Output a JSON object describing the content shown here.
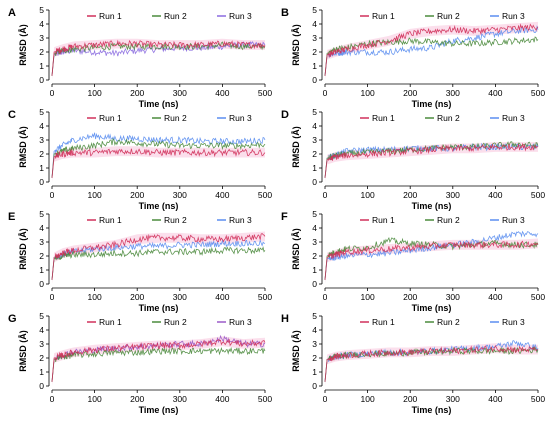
{
  "figure": {
    "panel_letters": [
      "A",
      "B",
      "C",
      "D",
      "E",
      "F",
      "G",
      "H"
    ],
    "xlabel": "Time (ns)",
    "ylabel": "RMSD (Å)",
    "x_ticks": [
      0,
      100,
      200,
      300,
      400,
      500
    ],
    "y_ticks": [
      0,
      1,
      2,
      3,
      4,
      5
    ]
  },
  "chart_data": [
    {
      "type": "line",
      "panel": "A",
      "xlabel": "Time (ns)",
      "ylabel": "RMSD (Å)",
      "xlim": [
        0,
        500
      ],
      "ylim": [
        0,
        5
      ],
      "series": [
        {
          "name": "Run 1",
          "color": "#d0305a",
          "x": [
            0,
            5,
            25,
            50,
            100,
            150,
            200,
            250,
            300,
            350,
            400,
            450,
            500
          ],
          "y": [
            0.3,
            2.0,
            2.2,
            2.4,
            2.5,
            2.6,
            2.6,
            2.5,
            2.5,
            2.5,
            2.6,
            2.5,
            2.5
          ]
        },
        {
          "name": "Run 2",
          "color": "#4a8a3c",
          "x": [
            0,
            5,
            25,
            50,
            100,
            150,
            200,
            250,
            300,
            350,
            400,
            450,
            500
          ],
          "y": [
            0.3,
            1.9,
            2.1,
            2.2,
            2.3,
            2.4,
            2.4,
            2.4,
            2.4,
            2.4,
            2.5,
            2.4,
            2.4
          ]
        },
        {
          "name": "Run 3",
          "color": "#8a6ae0",
          "x": [
            0,
            5,
            25,
            50,
            100,
            150,
            200,
            250,
            300,
            350,
            400,
            450,
            500
          ],
          "y": [
            0.3,
            1.8,
            2.0,
            2.1,
            2.0,
            1.9,
            2.1,
            2.2,
            2.3,
            2.3,
            2.4,
            2.5,
            2.5
          ]
        }
      ]
    },
    {
      "type": "line",
      "panel": "B",
      "xlabel": "Time (ns)",
      "ylabel": "RMSD (Å)",
      "xlim": [
        0,
        500
      ],
      "ylim": [
        0,
        5
      ],
      "series": [
        {
          "name": "Run 1",
          "color": "#d0305a",
          "x": [
            0,
            5,
            25,
            50,
            100,
            150,
            200,
            250,
            300,
            350,
            400,
            450,
            500
          ],
          "y": [
            0.3,
            1.8,
            2.0,
            2.2,
            2.5,
            2.8,
            3.3,
            3.5,
            3.6,
            3.5,
            3.6,
            3.7,
            3.8
          ]
        },
        {
          "name": "Run 2",
          "color": "#4a8a3c",
          "x": [
            0,
            5,
            25,
            50,
            100,
            150,
            200,
            250,
            300,
            350,
            400,
            450,
            500
          ],
          "y": [
            0.3,
            1.9,
            2.2,
            2.3,
            2.6,
            2.7,
            2.8,
            2.7,
            2.6,
            2.6,
            2.7,
            2.8,
            2.9
          ]
        },
        {
          "name": "Run 3",
          "color": "#5b8ef0",
          "x": [
            0,
            5,
            25,
            50,
            100,
            150,
            200,
            250,
            300,
            350,
            400,
            450,
            500
          ],
          "y": [
            0.3,
            1.8,
            1.9,
            2.0,
            2.0,
            2.0,
            2.2,
            2.3,
            2.8,
            3.0,
            3.3,
            3.5,
            3.6
          ]
        }
      ]
    },
    {
      "type": "line",
      "panel": "C",
      "xlabel": "Time (ns)",
      "ylabel": "RMSD (Å)",
      "xlim": [
        0,
        500
      ],
      "ylim": [
        0,
        5
      ],
      "series": [
        {
          "name": "Run 1",
          "color": "#d0305a",
          "x": [
            0,
            5,
            25,
            50,
            100,
            150,
            200,
            250,
            300,
            350,
            400,
            450,
            500
          ],
          "y": [
            0.3,
            1.8,
            2.0,
            2.1,
            2.1,
            2.2,
            2.2,
            2.1,
            2.1,
            2.1,
            2.1,
            2.1,
            2.1
          ]
        },
        {
          "name": "Run 2",
          "color": "#4a8a3c",
          "x": [
            0,
            5,
            25,
            50,
            100,
            150,
            200,
            250,
            300,
            350,
            400,
            450,
            500
          ],
          "y": [
            0.3,
            2.0,
            2.2,
            2.4,
            2.6,
            2.9,
            2.8,
            2.7,
            2.6,
            2.6,
            2.6,
            2.6,
            2.7
          ]
        },
        {
          "name": "Run 3",
          "color": "#5b8ef0",
          "x": [
            0,
            5,
            25,
            50,
            100,
            150,
            200,
            250,
            300,
            350,
            400,
            450,
            500
          ],
          "y": [
            0.3,
            2.2,
            2.6,
            3.0,
            3.3,
            3.1,
            3.1,
            3.0,
            3.0,
            2.9,
            2.9,
            2.9,
            3.0
          ]
        }
      ]
    },
    {
      "type": "line",
      "panel": "D",
      "xlabel": "Time (ns)",
      "ylabel": "RMSD (Å)",
      "xlim": [
        0,
        500
      ],
      "ylim": [
        0,
        5
      ],
      "series": [
        {
          "name": "Run 1",
          "color": "#d0305a",
          "x": [
            0,
            5,
            25,
            50,
            100,
            150,
            200,
            250,
            300,
            350,
            400,
            450,
            500
          ],
          "y": [
            0.3,
            1.6,
            1.8,
            1.9,
            2.0,
            2.1,
            2.2,
            2.3,
            2.4,
            2.4,
            2.5,
            2.5,
            2.5
          ]
        },
        {
          "name": "Run 2",
          "color": "#4a8a3c",
          "x": [
            0,
            5,
            25,
            50,
            100,
            150,
            200,
            250,
            300,
            350,
            400,
            450,
            500
          ],
          "y": [
            0.3,
            1.7,
            1.9,
            2.0,
            2.1,
            2.2,
            2.3,
            2.4,
            2.5,
            2.5,
            2.6,
            2.7,
            2.6
          ]
        },
        {
          "name": "Run 3",
          "color": "#5b8ef0",
          "x": [
            0,
            5,
            25,
            50,
            100,
            150,
            200,
            250,
            300,
            350,
            400,
            450,
            500
          ],
          "y": [
            0.3,
            1.7,
            1.9,
            2.2,
            2.3,
            2.3,
            2.4,
            2.4,
            2.4,
            2.5,
            2.5,
            2.5,
            2.5
          ]
        }
      ]
    },
    {
      "type": "line",
      "panel": "E",
      "xlabel": "Time (ns)",
      "ylabel": "RMSD (Å)",
      "xlim": [
        0,
        500
      ],
      "ylim": [
        0,
        5
      ],
      "series": [
        {
          "name": "Run 1",
          "color": "#d0305a",
          "x": [
            0,
            5,
            25,
            50,
            100,
            150,
            200,
            250,
            300,
            350,
            400,
            450,
            500
          ],
          "y": [
            0.3,
            1.9,
            2.2,
            2.4,
            2.6,
            2.8,
            3.2,
            3.3,
            3.3,
            3.2,
            3.2,
            3.3,
            3.4
          ]
        },
        {
          "name": "Run 2",
          "color": "#4a8a3c",
          "x": [
            0,
            5,
            25,
            50,
            100,
            150,
            200,
            250,
            300,
            350,
            400,
            450,
            500
          ],
          "y": [
            0.3,
            1.8,
            2.0,
            2.1,
            2.1,
            2.2,
            2.2,
            2.3,
            2.3,
            2.3,
            2.4,
            2.4,
            2.4
          ]
        },
        {
          "name": "Run 3",
          "color": "#5b8ef0",
          "x": [
            0,
            5,
            25,
            50,
            100,
            150,
            200,
            250,
            300,
            350,
            400,
            450,
            500
          ],
          "y": [
            0.3,
            1.9,
            2.1,
            2.3,
            2.5,
            2.6,
            2.7,
            2.7,
            2.8,
            2.8,
            2.9,
            2.9,
            2.9
          ]
        }
      ]
    },
    {
      "type": "line",
      "panel": "F",
      "xlabel": "Time (ns)",
      "ylabel": "RMSD (Å)",
      "xlim": [
        0,
        500
      ],
      "ylim": [
        0,
        5
      ],
      "series": [
        {
          "name": "Run 1",
          "color": "#d0305a",
          "x": [
            0,
            5,
            25,
            50,
            100,
            150,
            200,
            250,
            300,
            350,
            400,
            450,
            500
          ],
          "y": [
            0.3,
            1.9,
            2.1,
            2.3,
            2.4,
            2.5,
            2.6,
            2.7,
            2.8,
            2.8,
            2.8,
            2.8,
            2.9
          ]
        },
        {
          "name": "Run 2",
          "color": "#4a8a3c",
          "x": [
            0,
            5,
            25,
            50,
            100,
            150,
            200,
            250,
            300,
            350,
            400,
            450,
            500
          ],
          "y": [
            0.3,
            2.0,
            2.3,
            2.5,
            2.6,
            3.1,
            2.9,
            2.8,
            2.7,
            2.8,
            2.9,
            2.8,
            2.8
          ]
        },
        {
          "name": "Run 3",
          "color": "#5b8ef0",
          "x": [
            0,
            5,
            25,
            50,
            100,
            150,
            200,
            250,
            300,
            350,
            400,
            450,
            500
          ],
          "y": [
            0.3,
            1.8,
            1.9,
            2.0,
            2.1,
            2.2,
            2.4,
            2.6,
            2.8,
            3.0,
            3.3,
            3.6,
            3.6
          ]
        }
      ]
    },
    {
      "type": "line",
      "panel": "G",
      "xlabel": "Time (ns)",
      "ylabel": "RMSD (Å)",
      "xlim": [
        0,
        500
      ],
      "ylim": [
        0,
        5
      ],
      "series": [
        {
          "name": "Run 1",
          "color": "#d0305a",
          "x": [
            0,
            5,
            25,
            50,
            100,
            150,
            200,
            250,
            300,
            350,
            400,
            450,
            500
          ],
          "y": [
            0.3,
            2.0,
            2.2,
            2.4,
            2.6,
            2.7,
            2.8,
            2.9,
            2.9,
            3.0,
            3.2,
            3.0,
            3.1
          ]
        },
        {
          "name": "Run 2",
          "color": "#4a8a3c",
          "x": [
            0,
            5,
            25,
            50,
            100,
            150,
            200,
            250,
            300,
            350,
            400,
            450,
            500
          ],
          "y": [
            0.3,
            1.9,
            2.1,
            2.2,
            2.3,
            2.4,
            2.4,
            2.5,
            2.5,
            2.5,
            2.5,
            2.5,
            2.5
          ]
        },
        {
          "name": "Run 3",
          "color": "#9a5ac8",
          "x": [
            0,
            5,
            25,
            50,
            100,
            150,
            200,
            250,
            300,
            350,
            400,
            450,
            500
          ],
          "y": [
            0.3,
            1.9,
            2.2,
            2.4,
            2.6,
            2.7,
            2.8,
            2.9,
            3.0,
            3.0,
            3.4,
            3.0,
            3.0
          ]
        }
      ]
    },
    {
      "type": "line",
      "panel": "H",
      "xlabel": "Time (ns)",
      "ylabel": "RMSD (Å)",
      "xlim": [
        0,
        500
      ],
      "ylim": [
        0,
        5
      ],
      "series": [
        {
          "name": "Run 1",
          "color": "#d0305a",
          "x": [
            0,
            5,
            25,
            50,
            100,
            150,
            200,
            250,
            300,
            350,
            400,
            450,
            500
          ],
          "y": [
            0.3,
            1.9,
            2.1,
            2.2,
            2.3,
            2.4,
            2.4,
            2.5,
            2.5,
            2.6,
            2.7,
            2.6,
            2.6
          ]
        },
        {
          "name": "Run 2",
          "color": "#4a8a3c",
          "x": [
            0,
            5,
            25,
            50,
            100,
            150,
            200,
            250,
            300,
            350,
            400,
            450,
            500
          ],
          "y": [
            0.3,
            1.9,
            2.1,
            2.2,
            2.3,
            2.3,
            2.4,
            2.4,
            2.5,
            2.5,
            2.5,
            2.5,
            2.6
          ]
        },
        {
          "name": "Run 3",
          "color": "#5b8ef0",
          "x": [
            0,
            5,
            25,
            50,
            100,
            150,
            200,
            250,
            300,
            350,
            400,
            450,
            500
          ],
          "y": [
            0.3,
            1.9,
            2.1,
            2.2,
            2.3,
            2.4,
            2.4,
            2.5,
            2.6,
            2.7,
            2.8,
            3.1,
            2.7
          ]
        }
      ]
    }
  ]
}
